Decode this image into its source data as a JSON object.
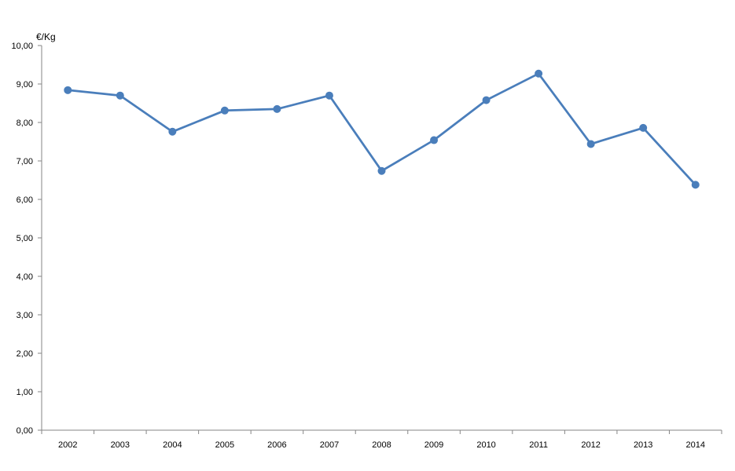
{
  "chart_data": {
    "type": "line",
    "title": "",
    "xlabel": "",
    "ylabel": "€/Kg",
    "categories": [
      "2002",
      "2003",
      "2004",
      "2005",
      "2006",
      "2007",
      "2008",
      "2009",
      "2010",
      "2011",
      "2012",
      "2013",
      "2014"
    ],
    "series": [
      {
        "values": [
          8.84,
          8.7,
          7.76,
          8.31,
          8.35,
          8.7,
          6.74,
          7.54,
          8.58,
          9.27,
          7.44,
          7.86,
          6.38
        ],
        "color": "#4a7ebb"
      }
    ],
    "ylim": [
      0,
      10
    ],
    "yticks": [
      "0,00",
      "1,00",
      "2,00",
      "3,00",
      "4,00",
      "5,00",
      "6,00",
      "7,00",
      "8,00",
      "9,00",
      "10,00"
    ],
    "grid": false,
    "legend": "none"
  }
}
